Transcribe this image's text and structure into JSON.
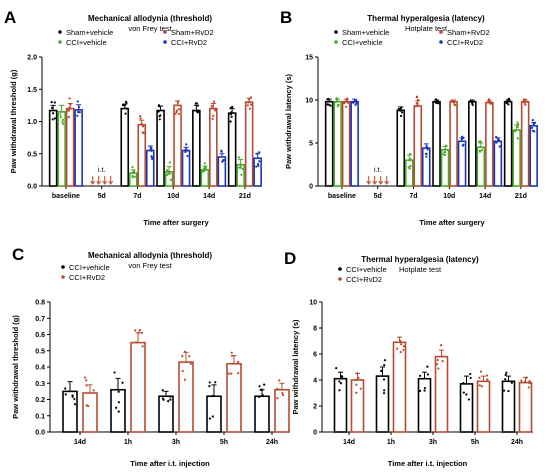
{
  "colors": {
    "sham_vehicle": "#000000",
    "cci_vehicle": "#46a82c",
    "sham_rvd2": "#b84a2e",
    "cci_rvd2": "#1a35b8",
    "cci_rvd2_cd": "#b84a2e"
  },
  "chart_data": [
    {
      "panel": "A",
      "type": "bar",
      "title": "Mechanical allodynia (threshold)",
      "subtitle": "von Frey test",
      "ylabel": "Paw withdrawal threshold (g)",
      "xlabel": "Time after surgery",
      "ylim": [
        0,
        2.0
      ],
      "yticks": [
        "0.0",
        "0.5",
        "1.0",
        "1.5",
        "2.0"
      ],
      "categories": [
        "baseline",
        "5d",
        "7d",
        "10d",
        "14d",
        "21d"
      ],
      "series": [
        {
          "name": "Sham+vehicle",
          "values": [
            1.17,
            null,
            1.2,
            1.17,
            1.17,
            1.13
          ],
          "errors": [
            0.08,
            null,
            0.07,
            0.07,
            0.08,
            0.07
          ]
        },
        {
          "name": "CCI+vehicle",
          "values": [
            1.15,
            null,
            0.2,
            0.22,
            0.25,
            0.33
          ],
          "errors": [
            0.1,
            null,
            0.05,
            0.08,
            0.06,
            0.08
          ]
        },
        {
          "name": "Sham+RvD2",
          "values": [
            1.2,
            null,
            0.95,
            1.25,
            1.2,
            1.3
          ],
          "errors": [
            0.08,
            null,
            0.07,
            0.07,
            0.08,
            0.06
          ]
        },
        {
          "name": "CCI+RvD2",
          "values": [
            1.18,
            null,
            0.55,
            0.55,
            0.45,
            0.43
          ],
          "errors": [
            0.08,
            null,
            0.07,
            0.05,
            0.05,
            0.07
          ]
        }
      ],
      "annotation": "i.t.",
      "legend": [
        "Sham+vehicle",
        "CCI+vehicle",
        "Sham+RvD2",
        "CCI+RvD2"
      ]
    },
    {
      "panel": "B",
      "type": "bar",
      "title": "Thermal hyperalgesia (latency)",
      "subtitle": "Hotplate test",
      "ylabel": "Paw withdrawal latency (s)",
      "xlabel": "Time after surgery",
      "ylim": [
        0,
        15
      ],
      "yticks": [
        "0",
        "5",
        "10",
        "15"
      ],
      "categories": [
        "baseline",
        "5d",
        "7d",
        "10d",
        "14d",
        "21d"
      ],
      "series": [
        {
          "name": "Sham+vehicle",
          "values": [
            9.8,
            null,
            8.8,
            9.8,
            9.8,
            9.8
          ],
          "errors": [
            0.3,
            null,
            0.4,
            0.2,
            0.2,
            0.2
          ]
        },
        {
          "name": "CCI+vehicle",
          "values": [
            9.8,
            null,
            3.0,
            4.2,
            4.5,
            6.5
          ],
          "errors": [
            0.3,
            null,
            0.6,
            0.4,
            0.5,
            0.6
          ]
        },
        {
          "name": "Sham+RvD2",
          "values": [
            9.8,
            null,
            9.3,
            9.8,
            9.7,
            9.8
          ],
          "errors": [
            0.3,
            null,
            0.6,
            0.2,
            0.2,
            0.2
          ]
        },
        {
          "name": "CCI+RvD2",
          "values": [
            9.8,
            null,
            4.4,
            5.2,
            5.2,
            7.0
          ],
          "errors": [
            0.3,
            null,
            0.5,
            0.4,
            0.4,
            0.4
          ]
        }
      ],
      "annotation": "i.t.",
      "legend": [
        "Sham+vehicle",
        "CCI+vehicle",
        "Sham+RvD2",
        "CCI+RvD2"
      ]
    },
    {
      "panel": "C",
      "type": "bar",
      "title": "Mechanical allodynia (threshold)",
      "subtitle": "von Frey test",
      "ylabel": "Paw withdrawal threshold (g)",
      "xlabel": "Time after i.t. injection",
      "ylim": [
        0,
        0.8
      ],
      "yticks": [
        "0.0",
        "0.1",
        "0.2",
        "0.3",
        "0.4",
        "0.5",
        "0.6",
        "0.7",
        "0.8"
      ],
      "categories": [
        "14d",
        "1h",
        "3h",
        "5h",
        "24h"
      ],
      "series": [
        {
          "name": "CCI+vehicle",
          "values": [
            0.25,
            0.26,
            0.22,
            0.22,
            0.22
          ],
          "errors": [
            0.06,
            0.07,
            0.03,
            0.07,
            0.04
          ]
        },
        {
          "name": "CCI+RvD2",
          "values": [
            0.24,
            0.55,
            0.43,
            0.42,
            0.26
          ],
          "errors": [
            0.05,
            0.06,
            0.06,
            0.05,
            0.04
          ]
        }
      ],
      "legend": [
        "CCI+vehicle",
        "CCI+RvD2"
      ]
    },
    {
      "panel": "D",
      "type": "bar",
      "title": "Thermal hyperalgesia (latency)",
      "subtitle": "Hotplate test",
      "ylabel": "Paw withdrawal latency (s)",
      "xlabel": "Time after i.t. injection",
      "ylim": [
        0,
        10
      ],
      "yticks": [
        "0",
        "2",
        "4",
        "6",
        "8",
        "10"
      ],
      "categories": [
        "14d",
        "1h",
        "3h",
        "5h",
        "24h"
      ],
      "series": [
        {
          "name": "CCI+vehicle",
          "values": [
            4.1,
            4.3,
            4.1,
            3.7,
            3.9
          ],
          "errors": [
            0.5,
            0.7,
            0.5,
            0.6,
            0.4
          ]
        },
        {
          "name": "CCI+RvD2",
          "values": [
            4.0,
            6.9,
            5.8,
            3.9,
            3.8
          ],
          "errors": [
            0.5,
            0.4,
            0.5,
            0.4,
            0.4
          ]
        }
      ],
      "legend": [
        "CCI+vehicle",
        "CCI+RvD2"
      ]
    }
  ]
}
